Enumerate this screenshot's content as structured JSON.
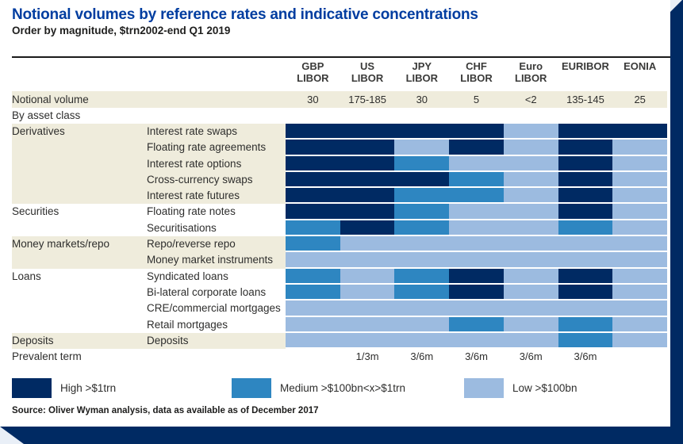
{
  "chart_data": {
    "type": "heatmap",
    "title": "Notional volumes by reference rates and indicative concentrations",
    "subtitle": "Order by magnitude, $trn2002-end Q1 2019",
    "columns": [
      {
        "line1": "GBP",
        "line2": "LIBOR"
      },
      {
        "line1": "US",
        "line2": "LIBOR"
      },
      {
        "line1": "JPY",
        "line2": "LIBOR"
      },
      {
        "line1": "CHF",
        "line2": "LIBOR"
      },
      {
        "line1": "Euro",
        "line2": "LIBOR"
      },
      {
        "line1": "EURIBOR",
        "line2": ""
      },
      {
        "line1": "EONIA",
        "line2": ""
      }
    ],
    "notional_volume": {
      "label": "Notional volume",
      "values": [
        "30",
        "175-185",
        "30",
        "5",
        "<2",
        "135-145",
        "25"
      ]
    },
    "section_label": "By asset class",
    "rows": [
      {
        "group": "Derivatives",
        "item": "Interest rate swaps",
        "shaded": true,
        "cells": [
          "H",
          "H",
          "H",
          "H",
          "L",
          "H",
          "H"
        ]
      },
      {
        "group": "",
        "item": "Floating rate agreements",
        "shaded": true,
        "cells": [
          "H",
          "H",
          "L",
          "H",
          "L",
          "H",
          "L"
        ]
      },
      {
        "group": "",
        "item": "Interest rate options",
        "shaded": true,
        "cells": [
          "H",
          "H",
          "M",
          "L",
          "L",
          "H",
          "L"
        ]
      },
      {
        "group": "",
        "item": "Cross-currency swaps",
        "shaded": true,
        "cells": [
          "H",
          "H",
          "H",
          "M",
          "L",
          "H",
          "L"
        ]
      },
      {
        "group": "",
        "item": "Interest rate futures",
        "shaded": true,
        "cells": [
          "H",
          "H",
          "M",
          "M",
          "L",
          "H",
          "L"
        ]
      },
      {
        "group": "Securities",
        "item": "Floating rate notes",
        "shaded": false,
        "cells": [
          "H",
          "H",
          "M",
          "L",
          "L",
          "H",
          "L"
        ]
      },
      {
        "group": "",
        "item": "Securitisations",
        "shaded": false,
        "cells": [
          "M",
          "H",
          "M",
          "L",
          "L",
          "M",
          "L"
        ]
      },
      {
        "group": "Money markets/repo",
        "item": "Repo/reverse repo",
        "shaded": true,
        "cells": [
          "M",
          "L",
          "L",
          "L",
          "L",
          "L",
          "L"
        ]
      },
      {
        "group": "",
        "item": "Money market instruments",
        "shaded": true,
        "cells": [
          "L",
          "L",
          "L",
          "L",
          "L",
          "L",
          "L"
        ]
      },
      {
        "group": "Loans",
        "item": "Syndicated loans",
        "shaded": false,
        "cells": [
          "M",
          "L",
          "M",
          "H",
          "L",
          "H",
          "L"
        ]
      },
      {
        "group": "",
        "item": "Bi-lateral corporate loans",
        "shaded": false,
        "cells": [
          "M",
          "L",
          "M",
          "H",
          "L",
          "H",
          "L"
        ]
      },
      {
        "group": "",
        "item": "CRE/commercial mortgages",
        "shaded": false,
        "cells": [
          "L",
          "L",
          "L",
          "L",
          "L",
          "L",
          "L"
        ]
      },
      {
        "group": "",
        "item": "Retail mortgages",
        "shaded": false,
        "cells": [
          "L",
          "L",
          "L",
          "M",
          "L",
          "M",
          "L"
        ]
      },
      {
        "group": "Deposits",
        "item": "Deposits",
        "shaded": true,
        "cells": [
          "L",
          "L",
          "L",
          "L",
          "L",
          "M",
          "L"
        ]
      }
    ],
    "prevalent_term": {
      "label": "Prevalent term",
      "values": [
        "",
        "1/3m",
        "3/6m",
        "3/6m",
        "3/6m",
        "3/6m",
        ""
      ]
    },
    "legend": [
      {
        "level": "H",
        "label": "High >$1trn",
        "color": "#002a63"
      },
      {
        "level": "M",
        "label": "Medium >$100bn<x>$1trn",
        "color": "#2e86c1"
      },
      {
        "level": "L",
        "label": "Low >$100bn",
        "color": "#9cbbe0"
      }
    ],
    "colors": {
      "H": "#002a63",
      "M": "#2e86c1",
      "L": "#9cbbe0",
      "row_shade": "#efecdc",
      "accent": "#003da0"
    },
    "source": "Source: Oliver Wyman analysis, data as available as of December 2017"
  }
}
